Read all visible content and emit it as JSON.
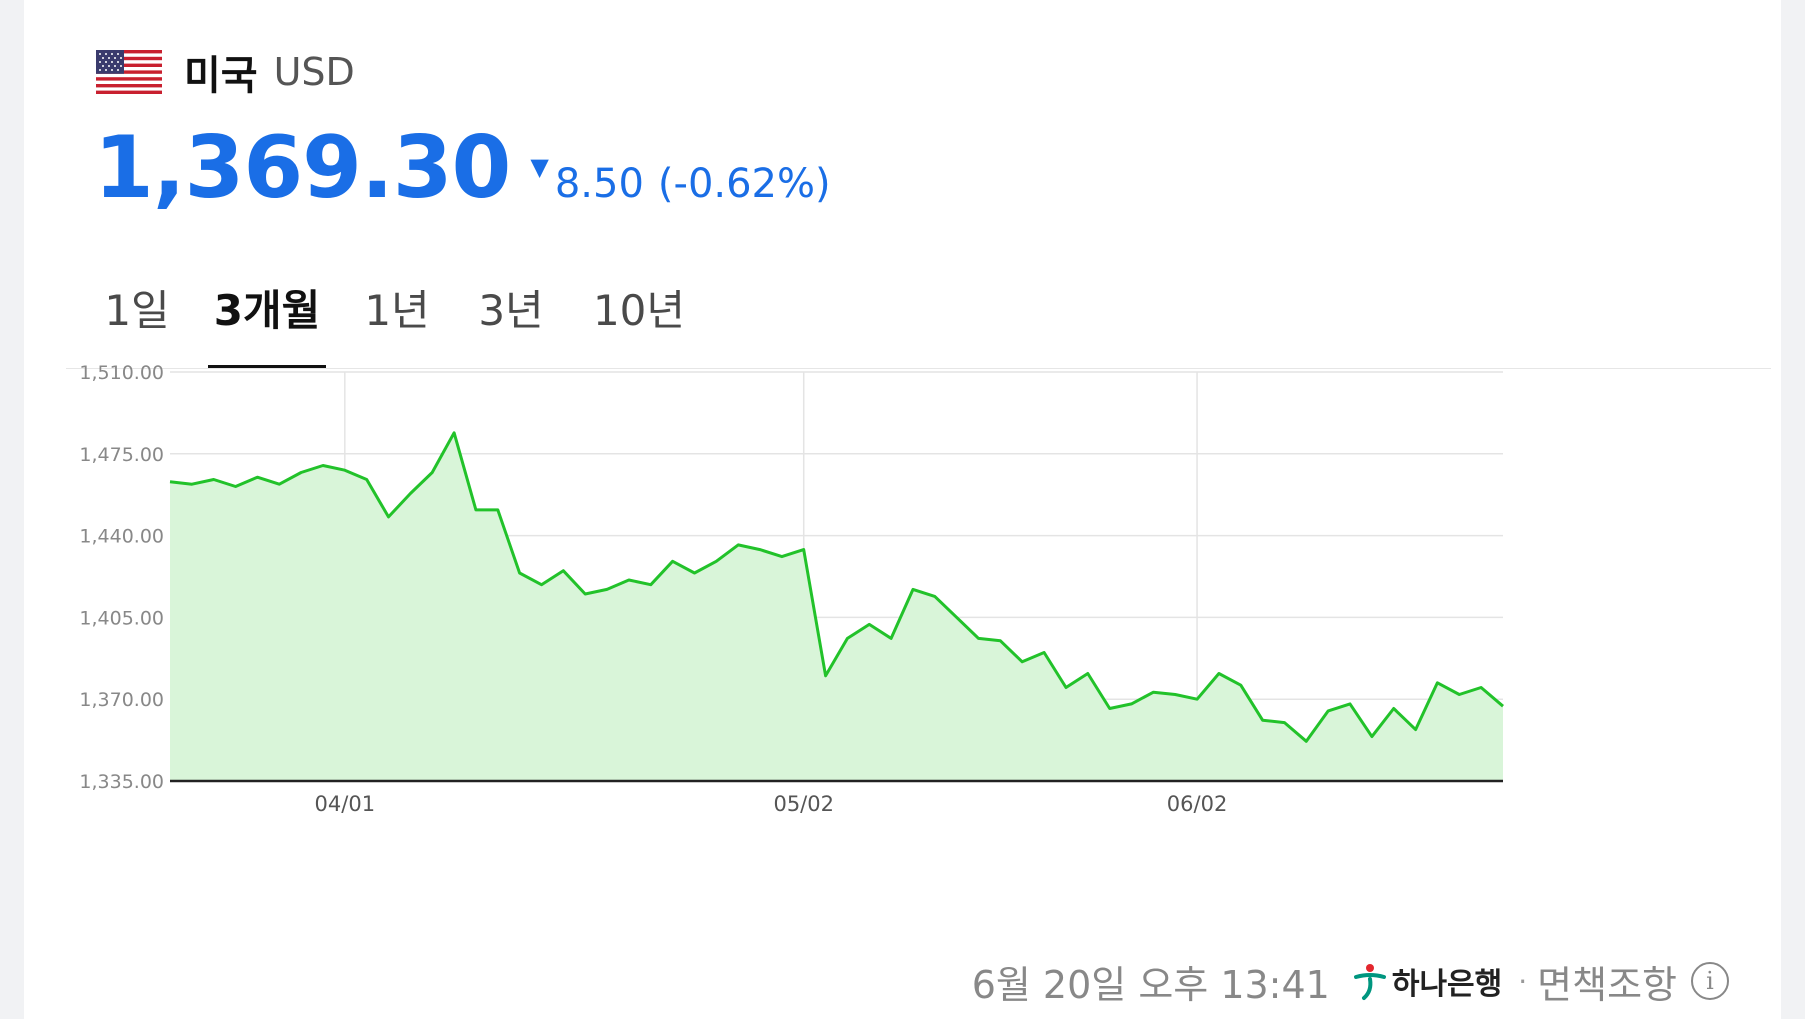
{
  "header": {
    "country": "미국",
    "currency": "USD",
    "flag_icon": "us-flag-icon"
  },
  "price": {
    "value": "1,369.30",
    "direction_icon": "down-triangle-icon",
    "change": "8.50",
    "change_pct": "(-0.62%)",
    "color": "#1a6ee6"
  },
  "tabs": [
    {
      "label": "1일",
      "active": false
    },
    {
      "label": "3개월",
      "active": true
    },
    {
      "label": "1년",
      "active": false
    },
    {
      "label": "3년",
      "active": false
    },
    {
      "label": "10년",
      "active": false
    }
  ],
  "footer": {
    "timestamp": "6월 20일 오후 13:41",
    "bank": "하나은행",
    "separator": "·",
    "disclaimer": "면책조항",
    "info_icon": "info-icon"
  },
  "chart_data": {
    "type": "area",
    "title": "",
    "xlabel": "",
    "ylabel": "",
    "ylim": [
      1335,
      1510
    ],
    "yticks": [
      "1,510.00",
      "1,475.00",
      "1,440.00",
      "1,405.00",
      "1,370.00",
      "1,335.00"
    ],
    "ytick_values": [
      1510,
      1475,
      1440,
      1405,
      1370,
      1335
    ],
    "xticks": [
      {
        "label": "04/01",
        "index": 8
      },
      {
        "label": "05/02",
        "index": 29
      },
      {
        "label": "06/02",
        "index": 47
      }
    ],
    "line_color": "#22c22a",
    "fill_color": "#d9f5d9",
    "grid": true,
    "series": [
      {
        "values": [
          1463,
          1462,
          1464,
          1461,
          1465,
          1462,
          1467,
          1470,
          1468,
          1464,
          1448,
          1458,
          1467,
          1484,
          1451,
          1451,
          1424,
          1419,
          1425,
          1415,
          1417,
          1421,
          1419,
          1429,
          1424,
          1429,
          1436,
          1434,
          1431,
          1434,
          1380,
          1396,
          1402,
          1396,
          1417,
          1414,
          1405,
          1396,
          1395,
          1386,
          1390,
          1375,
          1381,
          1366,
          1368,
          1373,
          1372,
          1370,
          1381,
          1376,
          1361,
          1360,
          1352,
          1365,
          1368,
          1354,
          1366,
          1357,
          1377,
          1372,
          1375,
          1367
        ]
      }
    ]
  }
}
